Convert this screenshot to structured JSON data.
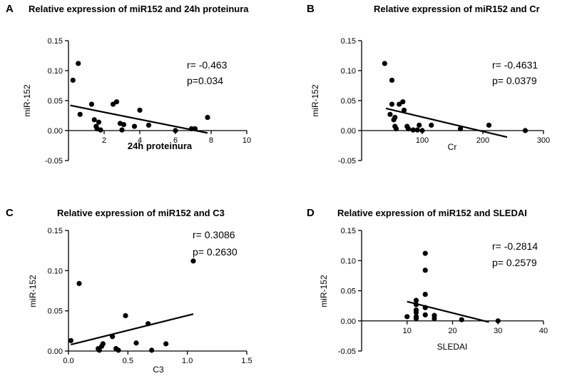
{
  "chart_data": [
    {
      "type": "scatter",
      "letter": "A",
      "title": "Relative expression of miR152 and 24h proteinura",
      "xlabel": "24h proteinura",
      "ylabel": "miR-152",
      "xlim": [
        0,
        10
      ],
      "ylim": [
        -0.05,
        0.15
      ],
      "xticks": [
        {
          "v": 2,
          "t": "2"
        },
        {
          "v": 4,
          "t": "4"
        },
        {
          "v": 6,
          "t": "6"
        },
        {
          "v": 8,
          "t": "8"
        },
        {
          "v": 10,
          "t": "10"
        }
      ],
      "yticks": [
        {
          "v": -0.05,
          "t": "-0.05"
        },
        {
          "v": 0,
          "t": "0.00"
        },
        {
          "v": 0.05,
          "t": "0.05"
        },
        {
          "v": 0.1,
          "t": "0.10"
        },
        {
          "v": 0.15,
          "t": "0.15"
        }
      ],
      "stats": [
        "r= -0.463",
        "p=0.034"
      ],
      "points": [
        [
          0.25,
          0.084
        ],
        [
          0.55,
          0.112
        ],
        [
          0.65,
          0.027
        ],
        [
          1.3,
          0.044
        ],
        [
          1.45,
          0.018
        ],
        [
          1.55,
          0.007
        ],
        [
          1.6,
          0.003
        ],
        [
          1.7,
          0.014
        ],
        [
          1.8,
          0.001
        ],
        [
          2.5,
          0.044
        ],
        [
          2.7,
          0.048
        ],
        [
          2.9,
          0.012
        ],
        [
          3.1,
          0.01
        ],
        [
          3.0,
          0.001
        ],
        [
          3.7,
          0.007
        ],
        [
          4.0,
          0.034
        ],
        [
          4.5,
          0.009
        ],
        [
          6.0,
          0.0
        ],
        [
          6.9,
          0.003
        ],
        [
          7.1,
          0.003
        ],
        [
          7.8,
          0.022
        ]
      ],
      "fit": [
        [
          0.1,
          0.042
        ],
        [
          7.8,
          -0.004
        ]
      ]
    },
    {
      "type": "scatter",
      "letter": "B",
      "title": "Relative expression of miR152 and Cr",
      "xlabel": "Cr",
      "ylabel": "miR-152",
      "xlim": [
        0,
        300
      ],
      "ylim": [
        -0.05,
        0.15
      ],
      "xticks": [
        {
          "v": 100,
          "t": "100"
        },
        {
          "v": 200,
          "t": "200"
        },
        {
          "v": 300,
          "t": "300"
        }
      ],
      "yticks": [
        {
          "v": -0.05,
          "t": "-0.05"
        },
        {
          "v": 0,
          "t": "0.00"
        },
        {
          "v": 0.05,
          "t": "0.05"
        },
        {
          "v": 0.1,
          "t": "0.10"
        },
        {
          "v": 0.15,
          "t": "0.15"
        }
      ],
      "stats": [
        "r= -0.4631",
        "p= 0.0379"
      ],
      "points": [
        [
          38,
          0.112
        ],
        [
          50,
          0.084
        ],
        [
          47,
          0.027
        ],
        [
          50,
          0.044
        ],
        [
          53,
          0.018
        ],
        [
          55,
          0.007
        ],
        [
          57,
          0.003
        ],
        [
          55,
          0.022
        ],
        [
          62,
          0.044
        ],
        [
          68,
          0.048
        ],
        [
          70,
          0.034
        ],
        [
          75,
          0.007
        ],
        [
          77,
          0.003
        ],
        [
          85,
          0.001
        ],
        [
          92,
          0.001
        ],
        [
          95,
          0.009
        ],
        [
          100,
          0.0
        ],
        [
          115,
          0.009
        ],
        [
          163,
          0.003
        ],
        [
          210,
          0.009
        ],
        [
          270,
          0.0
        ]
      ],
      "fit": [
        [
          40,
          0.037
        ],
        [
          240,
          -0.011
        ]
      ]
    },
    {
      "type": "scatter",
      "letter": "C",
      "title": "Relative expression of miR152 and C3",
      "xlabel": "C3",
      "ylabel": "miR-152",
      "xlim": [
        0,
        1.5
      ],
      "ylim": [
        0,
        0.15
      ],
      "xticks": [
        {
          "v": 0,
          "t": "0.0"
        },
        {
          "v": 0.5,
          "t": "0.5"
        },
        {
          "v": 1.0,
          "t": "1.0"
        },
        {
          "v": 1.5,
          "t": "1.5"
        }
      ],
      "yticks": [
        {
          "v": 0,
          "t": "0.00"
        },
        {
          "v": 0.05,
          "t": "0.05"
        },
        {
          "v": 0.1,
          "t": "0.10"
        },
        {
          "v": 0.15,
          "t": "0.15"
        }
      ],
      "stats": [
        "r=  0.3086",
        "p= 0.2630"
      ],
      "points": [
        [
          0.02,
          0.013
        ],
        [
          0.09,
          0.084
        ],
        [
          0.25,
          0.003
        ],
        [
          0.26,
          0.001
        ],
        [
          0.28,
          0.006
        ],
        [
          0.29,
          0.009
        ],
        [
          0.37,
          0.018
        ],
        [
          0.4,
          0.003
        ],
        [
          0.42,
          0.001
        ],
        [
          0.48,
          0.044
        ],
        [
          0.57,
          0.01
        ],
        [
          0.67,
          0.034
        ],
        [
          0.7,
          0.001
        ],
        [
          0.82,
          0.009
        ],
        [
          1.05,
          0.112
        ]
      ],
      "fit": [
        [
          0.02,
          0.008
        ],
        [
          1.05,
          0.046
        ]
      ]
    },
    {
      "type": "scatter",
      "letter": "D",
      "title": "Relative expression of miR152 and SLEDAI",
      "xlabel": "SLEDAI",
      "ylabel": "miR-152",
      "xlim": [
        0,
        40
      ],
      "ylim": [
        -0.05,
        0.15
      ],
      "xticks": [
        {
          "v": 10,
          "t": "10"
        },
        {
          "v": 20,
          "t": "20"
        },
        {
          "v": 30,
          "t": "30"
        },
        {
          "v": 40,
          "t": "40"
        }
      ],
      "yticks": [
        {
          "v": -0.05,
          "t": "-0.05"
        },
        {
          "v": 0,
          "t": "0.00"
        },
        {
          "v": 0.05,
          "t": "0.05"
        },
        {
          "v": 0.1,
          "t": "0.10"
        },
        {
          "v": 0.15,
          "t": "0.15"
        }
      ],
      "stats": [
        "r= -0.2814",
        "p= 0.2579"
      ],
      "points": [
        [
          10,
          0.007
        ],
        [
          12,
          0.034
        ],
        [
          12,
          0.027
        ],
        [
          12,
          0.018
        ],
        [
          12,
          0.014
        ],
        [
          12,
          0.007
        ],
        [
          12,
          0.004
        ],
        [
          14,
          0.112
        ],
        [
          14,
          0.084
        ],
        [
          14,
          0.044
        ],
        [
          14,
          0.022
        ],
        [
          14,
          0.01
        ],
        [
          16,
          0.009
        ],
        [
          16,
          0.004
        ],
        [
          22,
          0.002
        ],
        [
          30,
          0.0
        ]
      ],
      "fit": [
        [
          10,
          0.032
        ],
        [
          28,
          -0.002
        ]
      ]
    }
  ]
}
